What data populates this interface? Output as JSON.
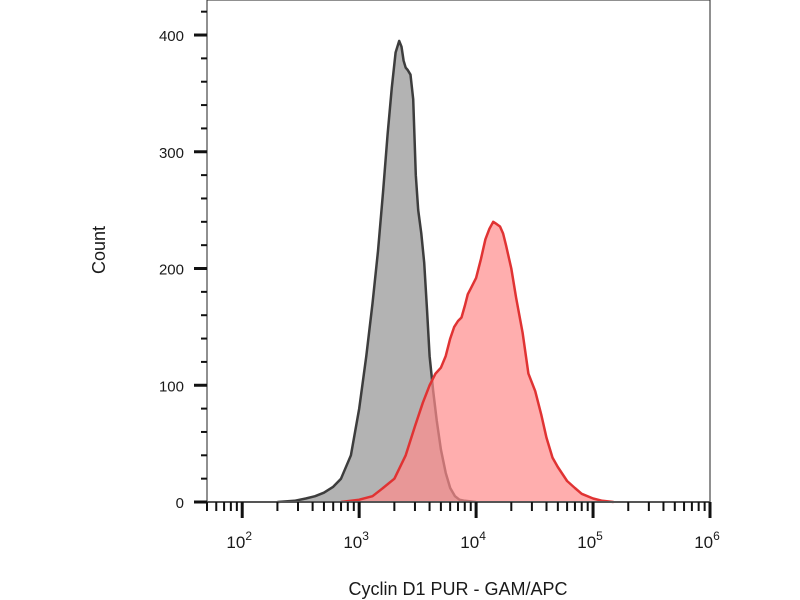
{
  "chart_data": {
    "type": "area",
    "xlabel": "Cyclin D1 PUR - GAM/APC",
    "ylabel": "Count",
    "x_scale": "log",
    "xlim": [
      50,
      1000000
    ],
    "ylim": [
      0,
      430
    ],
    "grid": false,
    "x_ticks": [
      {
        "base": "10",
        "exp": "2"
      },
      {
        "base": "10",
        "exp": "3"
      },
      {
        "base": "10",
        "exp": "4"
      },
      {
        "base": "10",
        "exp": "5"
      },
      {
        "base": "10",
        "exp": "6"
      }
    ],
    "y_ticks": [
      "0",
      "100",
      "200",
      "300",
      "400"
    ],
    "series": [
      {
        "fill": "#b3b3b3",
        "stroke": "#3d3d3d",
        "x": [
          200,
          280,
          350,
          420,
          500,
          600,
          700,
          850,
          1000,
          1150,
          1300,
          1450,
          1600,
          1750,
          1900,
          2050,
          2200,
          2300,
          2400,
          2500,
          2600,
          2750,
          2900,
          3050,
          3200,
          3400,
          3600,
          3800,
          4000,
          4300,
          4600,
          5000,
          5500,
          6000,
          6600,
          7200,
          8000,
          10000
        ],
        "y": [
          0,
          1,
          3,
          5,
          8,
          13,
          20,
          40,
          80,
          125,
          170,
          215,
          265,
          315,
          355,
          385,
          395,
          390,
          378,
          372,
          370,
          366,
          345,
          280,
          250,
          230,
          205,
          165,
          125,
          95,
          70,
          45,
          25,
          12,
          5,
          2,
          1,
          0
        ]
      },
      {
        "fill": "#ff8c8c",
        "fill_opacity": 0.7,
        "stroke": "#e03333",
        "x": [
          700,
          1000,
          1300,
          1600,
          2000,
          2500,
          3000,
          3500,
          4000,
          4500,
          5000,
          5500,
          6000,
          6500,
          7000,
          7500,
          8000,
          8500,
          9000,
          10000,
          11000,
          12000,
          13000,
          14000,
          15000,
          16000,
          17000,
          18000,
          20000,
          22000,
          25000,
          28000,
          32000,
          36000,
          40000,
          45000,
          50000,
          60000,
          70000,
          80000,
          100000,
          120000,
          150000
        ],
        "y": [
          0,
          2,
          5,
          12,
          20,
          40,
          65,
          85,
          100,
          110,
          115,
          125,
          140,
          150,
          155,
          158,
          168,
          178,
          183,
          192,
          208,
          225,
          234,
          240,
          238,
          236,
          230,
          220,
          200,
          175,
          145,
          110,
          95,
          75,
          55,
          38,
          30,
          18,
          12,
          7,
          3,
          1,
          0
        ]
      }
    ]
  }
}
